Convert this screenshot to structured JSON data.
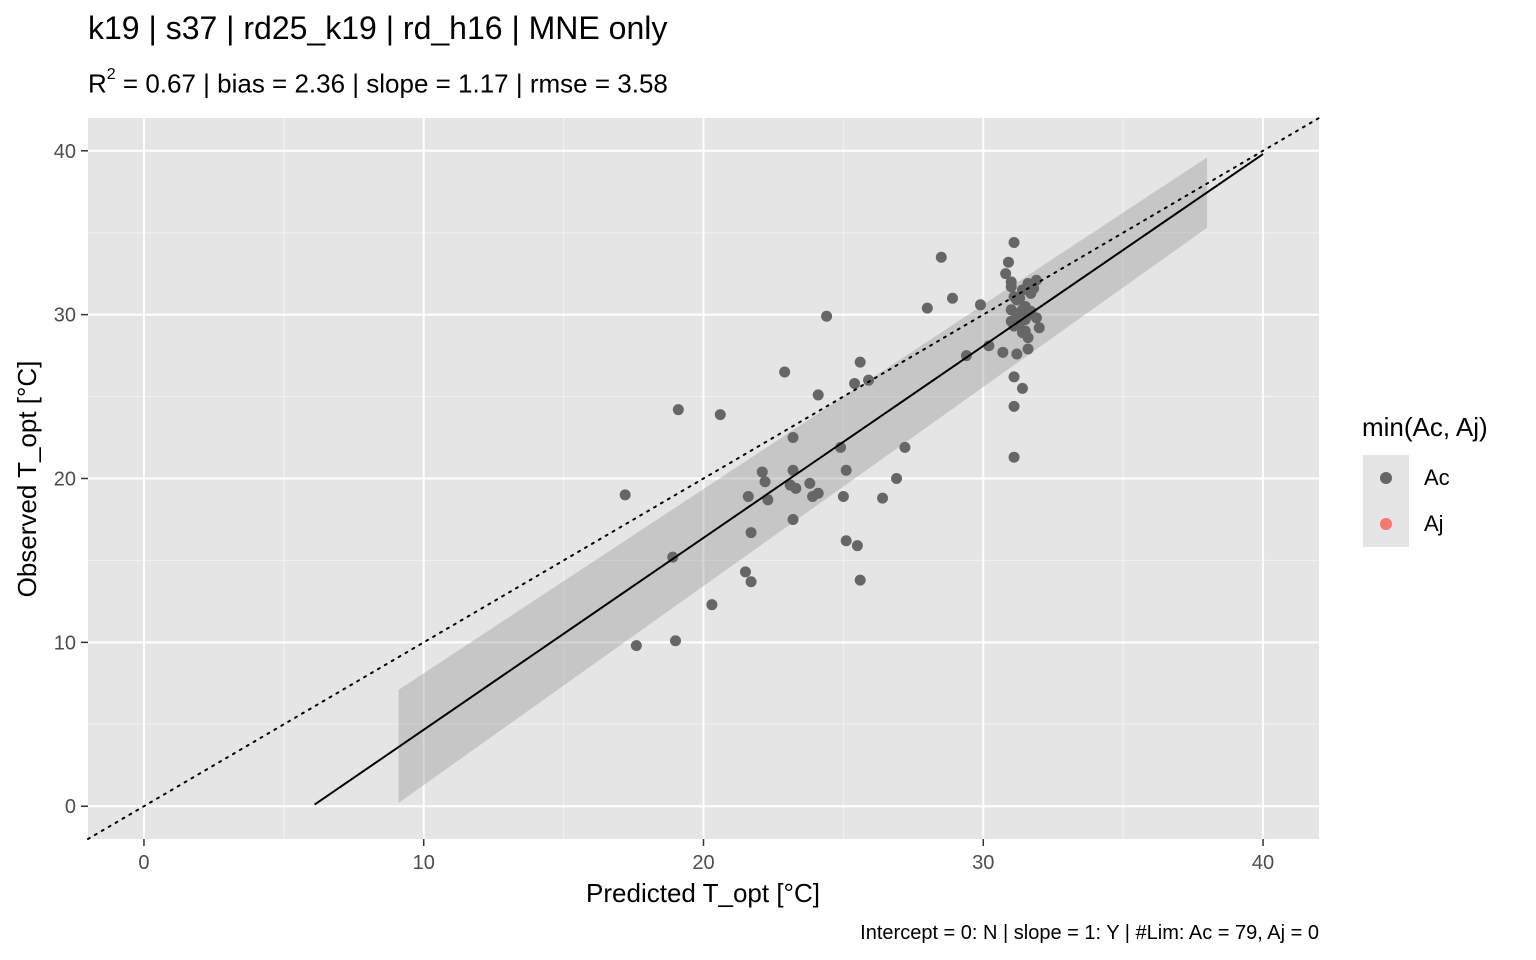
{
  "title": "k19 | s37 | rd25_k19 | rd_h16 | MNE only",
  "subtitle": {
    "r2_label": "R",
    "r2_sup": "2",
    "rest": " =  0.67  | bias =  2.36  | slope =  1.17  | rmse =  3.58"
  },
  "caption": "Intercept = 0: N | slope = 1: Y | #Lim: Ac = 79, Aj = 0",
  "chart_data": {
    "type": "scatter",
    "xlabel": "Predicted T_opt [°C]",
    "ylabel": "Observed T_opt [°C]",
    "xlim": [
      -2,
      42
    ],
    "ylim": [
      -2,
      42
    ],
    "x_ticks": [
      0,
      10,
      20,
      30,
      40
    ],
    "y_ticks": [
      0,
      10,
      20,
      30,
      40
    ],
    "grid": true,
    "legend_position": "right",
    "legend": {
      "title": "min(Ac, Aj)",
      "entries": [
        {
          "name": "Ac",
          "color": "#666666"
        },
        {
          "name": "Aj",
          "color": "#f8766d"
        }
      ]
    },
    "series": [
      {
        "name": "Ac",
        "color": "#666666",
        "points": [
          [
            17.2,
            19.0
          ],
          [
            18.9,
            15.2
          ],
          [
            19.0,
            10.1
          ],
          [
            17.6,
            9.8
          ],
          [
            19.1,
            24.2
          ],
          [
            20.6,
            23.9
          ],
          [
            20.3,
            12.3
          ],
          [
            21.5,
            14.3
          ],
          [
            21.7,
            13.7
          ],
          [
            21.7,
            16.7
          ],
          [
            21.6,
            18.9
          ],
          [
            22.1,
            20.4
          ],
          [
            22.2,
            19.8
          ],
          [
            22.3,
            18.7
          ],
          [
            22.9,
            26.5
          ],
          [
            23.1,
            19.6
          ],
          [
            23.2,
            22.5
          ],
          [
            23.2,
            20.5
          ],
          [
            23.3,
            19.4
          ],
          [
            23.2,
            17.5
          ],
          [
            23.8,
            19.7
          ],
          [
            23.9,
            18.9
          ],
          [
            24.1,
            19.1
          ],
          [
            24.1,
            25.1
          ],
          [
            24.4,
            29.9
          ],
          [
            24.9,
            21.9
          ],
          [
            25.0,
            18.9
          ],
          [
            25.1,
            20.5
          ],
          [
            25.1,
            16.2
          ],
          [
            25.5,
            15.9
          ],
          [
            25.6,
            13.8
          ],
          [
            25.4,
            25.8
          ],
          [
            25.6,
            27.1
          ],
          [
            25.9,
            26.0
          ],
          [
            26.4,
            18.8
          ],
          [
            26.9,
            20.0
          ],
          [
            27.2,
            21.9
          ],
          [
            28.0,
            30.4
          ],
          [
            28.5,
            33.5
          ],
          [
            28.9,
            31.0
          ],
          [
            29.4,
            27.5
          ],
          [
            29.9,
            30.6
          ],
          [
            30.2,
            28.1
          ],
          [
            30.7,
            27.7
          ],
          [
            30.8,
            32.5
          ],
          [
            30.9,
            33.2
          ],
          [
            31.0,
            32.0
          ],
          [
            31.1,
            34.4
          ],
          [
            31.0,
            31.7
          ],
          [
            31.1,
            31.1
          ],
          [
            31.2,
            29.9
          ],
          [
            31.3,
            30.1
          ],
          [
            31.0,
            29.6
          ],
          [
            31.1,
            29.3
          ],
          [
            31.3,
            29.5
          ],
          [
            31.4,
            30.3
          ],
          [
            31.5,
            29.0
          ],
          [
            31.6,
            28.6
          ],
          [
            31.2,
            27.6
          ],
          [
            31.6,
            27.9
          ],
          [
            31.1,
            26.2
          ],
          [
            31.4,
            25.5
          ],
          [
            31.1,
            24.4
          ],
          [
            31.1,
            21.3
          ],
          [
            31.5,
            30.5
          ],
          [
            31.6,
            31.9
          ],
          [
            31.7,
            31.3
          ],
          [
            31.9,
            32.1
          ],
          [
            31.9,
            29.8
          ],
          [
            32.0,
            29.2
          ],
          [
            31.4,
            31.5
          ],
          [
            31.8,
            31.6
          ],
          [
            31.2,
            30.9
          ],
          [
            31.6,
            30.0
          ],
          [
            31.3,
            31.0
          ],
          [
            31.5,
            29.7
          ],
          [
            31.7,
            30.2
          ],
          [
            31.0,
            30.3
          ],
          [
            31.4,
            28.9
          ]
        ]
      },
      {
        "name": "Aj",
        "color": "#f8766d",
        "points": []
      }
    ],
    "fit_line": {
      "x": [
        6.1,
        40.0
      ],
      "y": [
        0.1,
        39.8
      ],
      "color": "#000000"
    },
    "confidence_band": {
      "x": [
        9.1,
        38.0
      ],
      "upper": [
        7.1,
        39.6
      ],
      "lower": [
        0.2,
        35.3
      ],
      "fill": "#999999"
    },
    "identity_line": {
      "x": [
        -2,
        42
      ],
      "y": [
        -2,
        42
      ],
      "style": "dotted"
    }
  }
}
